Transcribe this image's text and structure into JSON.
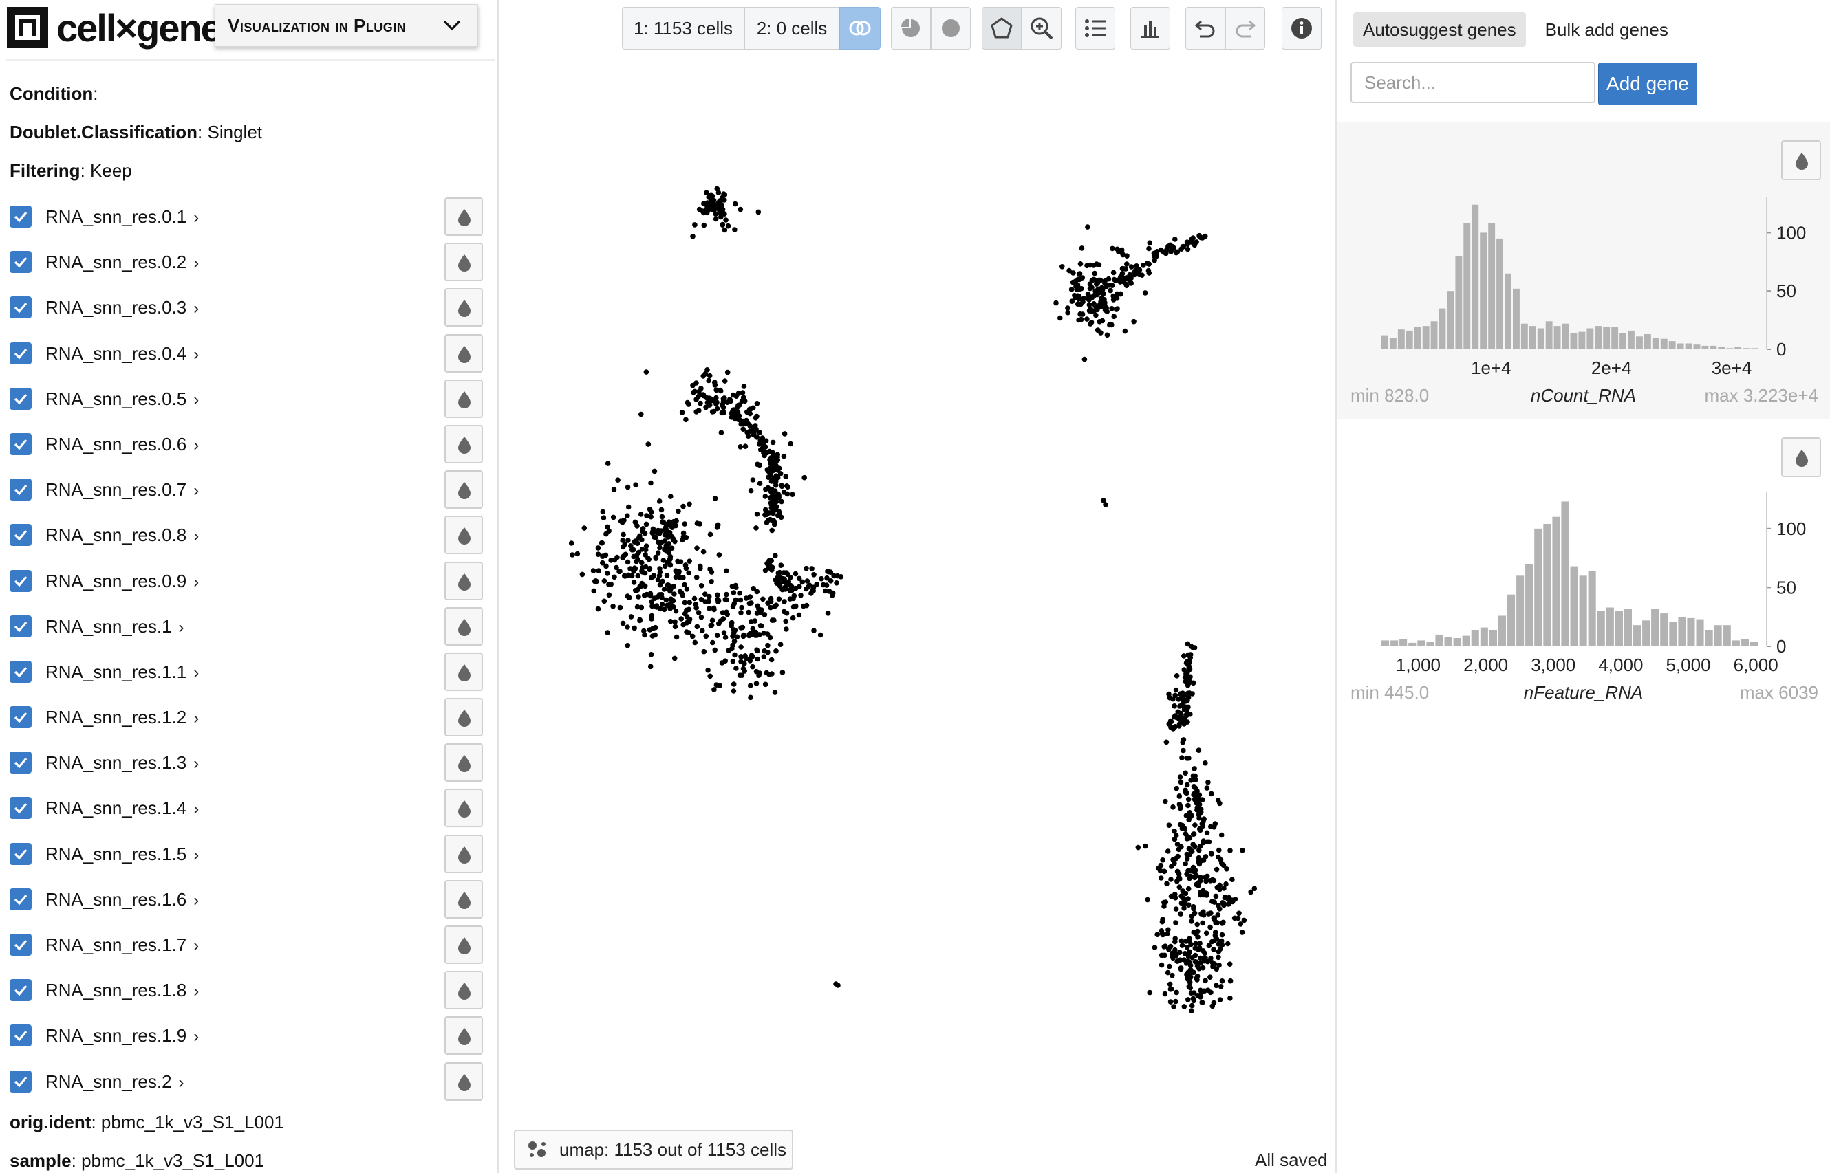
{
  "header": {
    "logo_text": "cell×gene",
    "plugin_dropdown_label": "Visualization in Plugin"
  },
  "metadata": {
    "condition": {
      "key": "Condition",
      "value": ""
    },
    "doublet": {
      "key": "Doublet.Classification",
      "value": "Singlet"
    },
    "filtering": {
      "key": "Filtering",
      "value": "Keep"
    },
    "orig_ident": {
      "key": "orig.ident",
      "value": "pbmc_1k_v3_S1_L001"
    },
    "sample": {
      "key": "sample",
      "value": "pbmc_1k_v3_S1_L001"
    }
  },
  "categories": [
    "RNA_snn_res.0.1",
    "RNA_snn_res.0.2",
    "RNA_snn_res.0.3",
    "RNA_snn_res.0.4",
    "RNA_snn_res.0.5",
    "RNA_snn_res.0.6",
    "RNA_snn_res.0.7",
    "RNA_snn_res.0.8",
    "RNA_snn_res.0.9",
    "RNA_snn_res.1",
    "RNA_snn_res.1.1",
    "RNA_snn_res.1.2",
    "RNA_snn_res.1.3",
    "RNA_snn_res.1.4",
    "RNA_snn_res.1.5",
    "RNA_snn_res.1.6",
    "RNA_snn_res.1.7",
    "RNA_snn_res.1.8",
    "RNA_snn_res.1.9",
    "RNA_snn_res.2"
  ],
  "toolbar": {
    "cellset1_label": "1: 1153 cells",
    "cellset2_label": "2: 0 cells"
  },
  "embedding": {
    "label": "umap: 1153 out of 1153 cells"
  },
  "status": {
    "save": "All saved"
  },
  "gene_panel": {
    "tab_autosuggest": "Autosuggest genes",
    "tab_bulk": "Bulk add genes",
    "search_placeholder": "Search...",
    "add_button": "Add gene"
  },
  "histograms": [
    {
      "field": "nCount_RNA",
      "min_label": "min 828.0",
      "max_label": "max 3.223e+4",
      "x_ticks": [
        {
          "value": 10000,
          "label": "1e+4"
        },
        {
          "value": 20000,
          "label": "2e+4"
        },
        {
          "value": 30000,
          "label": "3e+4"
        }
      ],
      "y_ticks": [
        {
          "value": 0,
          "label": "0"
        },
        {
          "value": 50,
          "label": "50"
        },
        {
          "value": 100,
          "label": "100"
        }
      ],
      "xlim": [
        828,
        32230
      ],
      "ymax": 125,
      "counts": [
        12,
        10,
        17,
        16,
        19,
        20,
        24,
        35,
        50,
        80,
        108,
        124,
        100,
        108,
        95,
        65,
        52,
        22,
        20,
        18,
        24,
        20,
        22,
        14,
        15,
        18,
        20,
        19,
        19,
        14,
        16,
        11,
        13,
        10,
        9,
        7,
        5,
        5,
        4,
        3,
        3,
        2,
        1,
        2,
        1,
        1
      ]
    },
    {
      "field": "nFeature_RNA",
      "min_label": "min 445.0",
      "max_label": "max 6039",
      "x_ticks": [
        {
          "value": 1000,
          "label": "1,000"
        },
        {
          "value": 2000,
          "label": "2,000"
        },
        {
          "value": 3000,
          "label": "3,000"
        },
        {
          "value": 4000,
          "label": "4,000"
        },
        {
          "value": 5000,
          "label": "5,000"
        },
        {
          "value": 6000,
          "label": "6,000"
        }
      ],
      "y_ticks": [
        {
          "value": 0,
          "label": "0"
        },
        {
          "value": 50,
          "label": "50"
        },
        {
          "value": 100,
          "label": "100"
        }
      ],
      "xlim": [
        445,
        6039
      ],
      "ymax": 125,
      "counts": [
        5,
        5,
        6,
        3,
        5,
        4,
        10,
        8,
        7,
        9,
        14,
        16,
        14,
        26,
        44,
        60,
        70,
        100,
        104,
        110,
        123,
        68,
        60,
        64,
        30,
        33,
        30,
        32,
        18,
        22,
        32,
        28,
        21,
        25,
        24,
        23,
        14,
        18,
        18,
        5,
        6,
        4
      ]
    }
  ],
  "colors": {
    "accent_blue": "#3a7bc8",
    "histogram_bar": "#b3b3b3",
    "cell_dot": "#000000"
  }
}
